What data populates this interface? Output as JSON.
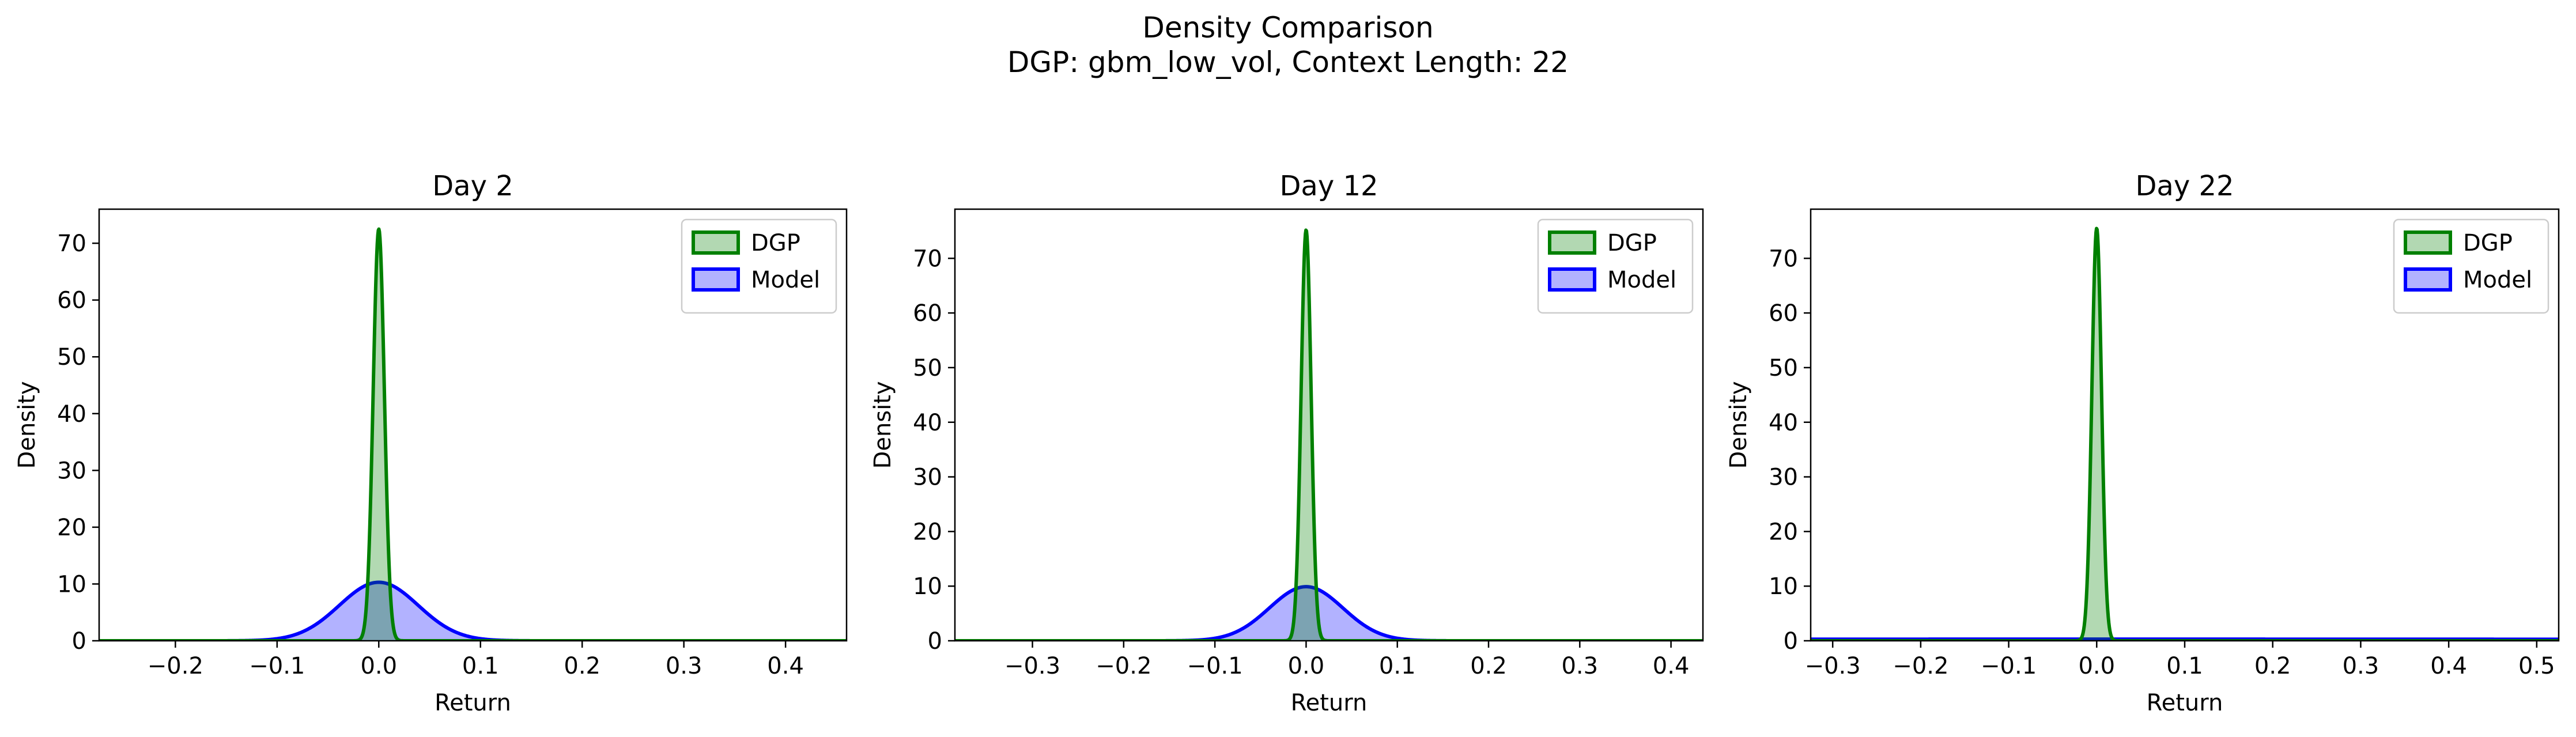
{
  "figure": {
    "title_line1": "Density Comparison",
    "title_line2": "DGP: gbm_low_vol, Context Length: 22"
  },
  "colors": {
    "dgp_line": "#008000",
    "dgp_fill": "#b2d8b2",
    "model_line": "#0000ff",
    "model_fill": "#b2b2ff",
    "axes": "#000000"
  },
  "chart_data": [
    {
      "type": "area",
      "title": "Day 2",
      "xlabel": "Return",
      "ylabel": "Density",
      "xlim": [
        -0.275,
        0.46
      ],
      "ylim": [
        0,
        76
      ],
      "xticks": [
        -0.2,
        -0.1,
        0.0,
        0.1,
        0.2,
        0.3,
        0.4
      ],
      "xtick_labels": [
        "−0.2",
        "−0.1",
        "0.0",
        "0.1",
        "0.2",
        "0.3",
        "0.4"
      ],
      "yticks": [
        0,
        10,
        20,
        30,
        40,
        50,
        60,
        70
      ],
      "ytick_labels": [
        "0",
        "10",
        "20",
        "30",
        "40",
        "50",
        "60",
        "70"
      ],
      "legend_position": "upper right",
      "series": [
        {
          "name": "DGP",
          "distribution": "normal",
          "mean": 0.0,
          "peak_density": 72.5
        },
        {
          "name": "Model",
          "distribution": "normal",
          "mean": 0.0,
          "peak_density": 10.3
        }
      ]
    },
    {
      "type": "area",
      "title": "Day 12",
      "xlabel": "Return",
      "ylabel": "Density",
      "xlim": [
        -0.385,
        0.435
      ],
      "ylim": [
        0,
        79
      ],
      "xticks": [
        -0.3,
        -0.2,
        -0.1,
        0.0,
        0.1,
        0.2,
        0.3,
        0.4
      ],
      "xtick_labels": [
        "−0.3",
        "−0.2",
        "−0.1",
        "0.0",
        "0.1",
        "0.2",
        "0.3",
        "0.4"
      ],
      "yticks": [
        0,
        10,
        20,
        30,
        40,
        50,
        60,
        70
      ],
      "ytick_labels": [
        "0",
        "10",
        "20",
        "30",
        "40",
        "50",
        "60",
        "70"
      ],
      "legend_position": "upper right",
      "series": [
        {
          "name": "DGP",
          "distribution": "normal",
          "mean": 0.0,
          "peak_density": 75.2
        },
        {
          "name": "Model",
          "distribution": "normal",
          "mean": 0.0,
          "peak_density": 9.9
        }
      ]
    },
    {
      "type": "area",
      "title": "Day 22",
      "xlabel": "Return",
      "ylabel": "Density",
      "xlim": [
        -0.325,
        0.525
      ],
      "ylim": [
        0,
        79
      ],
      "xticks": [
        -0.3,
        -0.2,
        -0.1,
        0.0,
        0.1,
        0.2,
        0.3,
        0.4,
        0.5
      ],
      "xtick_labels": [
        "−0.3",
        "−0.2",
        "−0.1",
        "0.0",
        "0.1",
        "0.2",
        "0.3",
        "0.4",
        "0.5"
      ],
      "yticks": [
        0,
        10,
        20,
        30,
        40,
        50,
        60,
        70
      ],
      "ytick_labels": [
        "0",
        "10",
        "20",
        "30",
        "40",
        "50",
        "60",
        "70"
      ],
      "legend_position": "upper right",
      "series": [
        {
          "name": "DGP",
          "distribution": "normal",
          "mean": 0.0,
          "peak_density": 75.5
        },
        {
          "name": "Model",
          "distribution": "normal",
          "mean": 0.0,
          "peak_density": 0.3
        }
      ]
    }
  ]
}
